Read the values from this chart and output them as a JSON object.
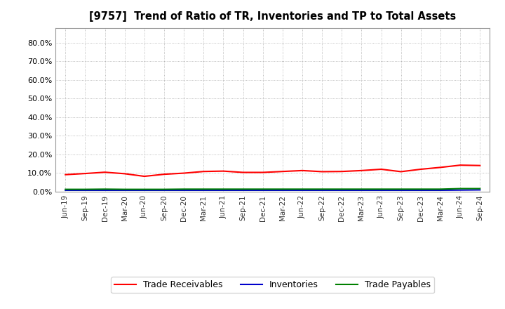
{
  "title": "[9757]  Trend of Ratio of TR, Inventories and TP to Total Assets",
  "background_color": "#ffffff",
  "plot_bg_color": "#ffffff",
  "grid_color": "#aaaaaa",
  "ylim": [
    0.0,
    0.88
  ],
  "yticks": [
    0.0,
    0.1,
    0.2,
    0.3,
    0.4,
    0.5,
    0.6,
    0.7,
    0.8
  ],
  "x_labels": [
    "Jun-19",
    "Sep-19",
    "Dec-19",
    "Mar-20",
    "Jun-20",
    "Sep-20",
    "Dec-20",
    "Mar-21",
    "Jun-21",
    "Sep-21",
    "Dec-21",
    "Mar-22",
    "Jun-22",
    "Sep-22",
    "Dec-22",
    "Mar-23",
    "Jun-23",
    "Sep-23",
    "Dec-23",
    "Mar-24",
    "Jun-24",
    "Sep-24"
  ],
  "trade_receivables": [
    0.091,
    0.097,
    0.104,
    0.096,
    0.082,
    0.093,
    0.099,
    0.108,
    0.11,
    0.103,
    0.103,
    0.108,
    0.113,
    0.107,
    0.108,
    0.113,
    0.12,
    0.107,
    0.12,
    0.13,
    0.142,
    0.14
  ],
  "inventories": [
    0.007,
    0.007,
    0.007,
    0.007,
    0.007,
    0.007,
    0.007,
    0.007,
    0.007,
    0.007,
    0.007,
    0.007,
    0.007,
    0.007,
    0.007,
    0.007,
    0.007,
    0.007,
    0.007,
    0.007,
    0.008,
    0.009
  ],
  "trade_payables": [
    0.012,
    0.012,
    0.013,
    0.012,
    0.012,
    0.012,
    0.013,
    0.013,
    0.013,
    0.013,
    0.013,
    0.013,
    0.013,
    0.013,
    0.013,
    0.013,
    0.013,
    0.013,
    0.013,
    0.013,
    0.016,
    0.016
  ],
  "line_colors": {
    "trade_receivables": "#ff0000",
    "inventories": "#0000cc",
    "trade_payables": "#008000"
  },
  "legend_labels": {
    "trade_receivables": "Trade Receivables",
    "inventories": "Inventories",
    "trade_payables": "Trade Payables"
  }
}
